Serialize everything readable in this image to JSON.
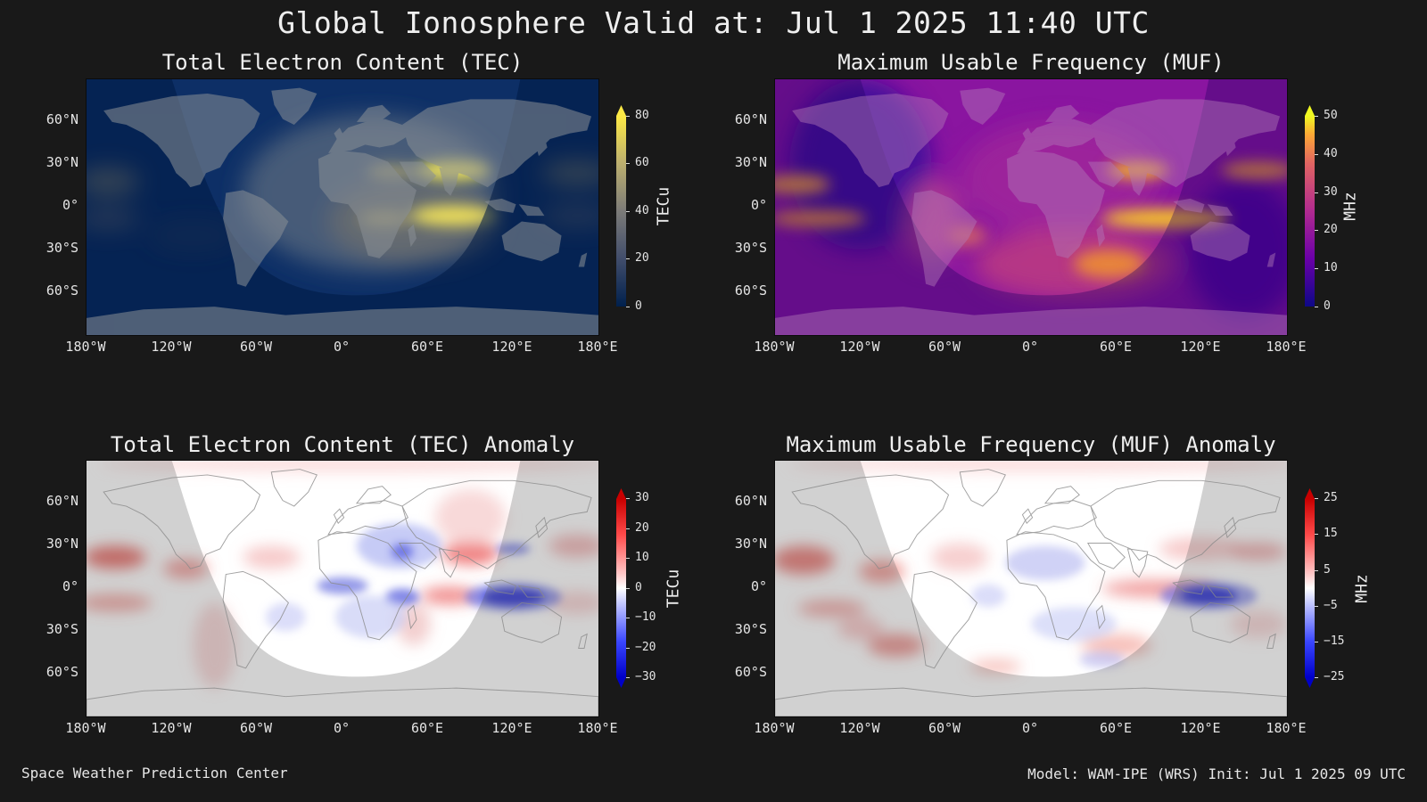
{
  "title": "Global Ionosphere Valid at: Jul 1 2025 11:40 UTC",
  "lat_ticks": [
    "60°N",
    "30°N",
    "0°",
    "30°S",
    "60°S"
  ],
  "lon_ticks": [
    "180°W",
    "120°W",
    "60°W",
    "0°",
    "60°E",
    "120°E",
    "180°E"
  ],
  "panels": [
    {
      "id": "tec",
      "title": "Total Electron Content (TEC)",
      "colormap": "cividis",
      "colorbar": {
        "unit": "TECu",
        "ticks": [
          "80",
          "60",
          "40",
          "20",
          "0"
        ],
        "range": [
          0,
          80
        ],
        "extend": "max"
      }
    },
    {
      "id": "muf",
      "title": "Maximum Usable Frequency (MUF)",
      "colormap": "plasma",
      "colorbar": {
        "unit": "MHz",
        "ticks": [
          "50",
          "40",
          "30",
          "20",
          "10",
          "0"
        ],
        "range": [
          0,
          50
        ],
        "extend": "max"
      }
    },
    {
      "id": "tec-anomaly",
      "title": "Total Electron Content (TEC) Anomaly",
      "colormap": "bwr",
      "colorbar": {
        "unit": "TECu",
        "ticks": [
          "30",
          "20",
          "10",
          "0",
          "−10",
          "−20",
          "−30"
        ],
        "range": [
          -30,
          30
        ],
        "extend": "both"
      }
    },
    {
      "id": "muf-anomaly",
      "title": "Maximum Usable Frequency (MUF) Anomaly",
      "colormap": "bwr",
      "colorbar": {
        "unit": "MHz",
        "ticks": [
          "25",
          "15",
          "5",
          "−5",
          "−15",
          "−25"
        ],
        "range": [
          -25,
          25
        ],
        "extend": "both"
      }
    }
  ],
  "footer": {
    "left": "Space Weather Prediction Center",
    "right": "Model: WAM-IPE (WRS) Init: Jul 1 2025 09 UTC"
  },
  "colors": {
    "background": "#191919",
    "tec_low": "#002a5a",
    "tec_high": "#fff44a",
    "muf_low": "#2a0794",
    "muf_mid": "#b12a90",
    "muf_high": "#f0f921",
    "anomaly_pos": "#e0201a",
    "anomaly_neg": "#0a10d8"
  }
}
